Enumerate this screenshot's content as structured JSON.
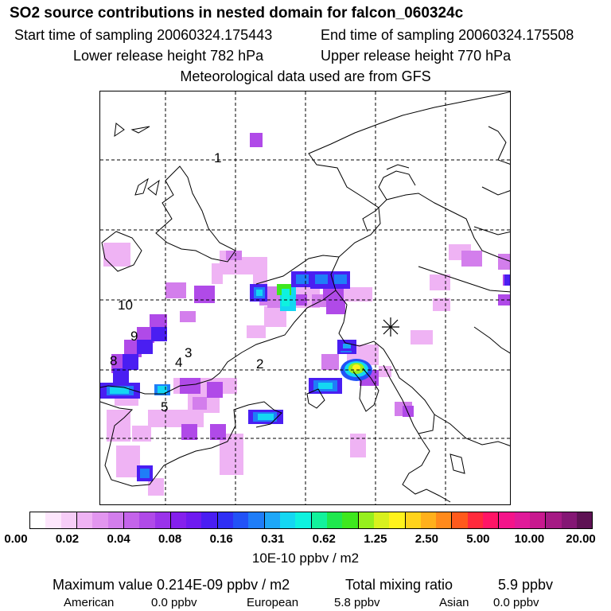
{
  "title": "SO2 source contributions in nested domain for falcon_060324c",
  "info": {
    "start": "Start time of sampling 20060324.175443",
    "end": "End time of sampling 20060324.175508",
    "lower": "Lower release height  782 hPa",
    "upper": "Upper release height  770 hPa",
    "meteo": "Meteorological data used are from GFS"
  },
  "map": {
    "labels": [
      "1",
      "10",
      "9",
      "8",
      "4",
      "3",
      "2",
      "5"
    ],
    "marker_icon": "asterisk-icon"
  },
  "colorbar": {
    "colors": [
      "#ffffff",
      "#fde6fc",
      "#f6cdf7",
      "#efb3f4",
      "#e296ef",
      "#d37eec",
      "#c464ea",
      "#b04ae8",
      "#9a33ea",
      "#8520ed",
      "#6f1af0",
      "#4a1ef2",
      "#2f2ff5",
      "#2252f7",
      "#1f7df8",
      "#1ea7f8",
      "#14d7f2",
      "#0ef2df",
      "#12f29c",
      "#1fe84e",
      "#3ee81e",
      "#96ef1e",
      "#d8f11e",
      "#fff21c",
      "#ffd31c",
      "#ffb01c",
      "#ff8a1c",
      "#ff5a1c",
      "#ff2a3c",
      "#ff1566",
      "#f4148a",
      "#e01a99",
      "#c8198f",
      "#a51a84",
      "#841774",
      "#5e1254"
    ],
    "ticks": [
      "0.00",
      "0.02",
      "0.04",
      "0.08",
      "0.16",
      "0.31",
      "0.62",
      "1.25",
      "2.50",
      "5.00",
      "10.00",
      "20.00"
    ],
    "unit": "10E-10 ppbv / m2"
  },
  "summary": {
    "max_label": "Maximum value  0.214E-09 ppbv / m2",
    "total_label": "Total mixing ratio",
    "total_value": "5.9 ppbv",
    "american_label": "American",
    "american_value": "0.0 ppbv",
    "european_label": "European",
    "european_value": "5.8 ppbv",
    "asian_label": "Asian",
    "asian_value": "0.0 ppbv"
  }
}
